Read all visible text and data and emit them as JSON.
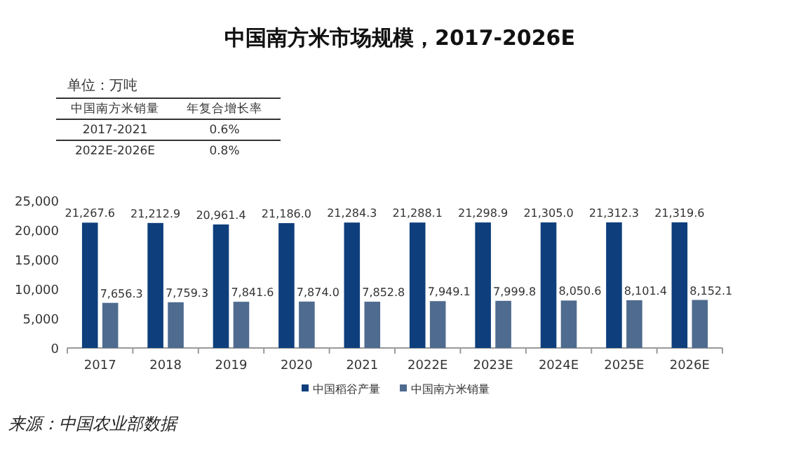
{
  "chart_data": {
    "type": "bar",
    "title": "中国南方米市场规模，2017-2026E",
    "categories": [
      "2017",
      "2018",
      "2019",
      "2020",
      "2021",
      "2022E",
      "2023E",
      "2024E",
      "2025E",
      "2026E"
    ],
    "series": [
      {
        "name": "中国稻谷产量",
        "color": "#0e3f7c",
        "values": [
          21267.6,
          21212.9,
          20961.4,
          21186.0,
          21284.3,
          21288.1,
          21298.9,
          21305.0,
          21312.3,
          21319.6
        ],
        "value_labels": [
          "21,267.6",
          "21,212.9",
          "20,961.4",
          "21,186.0",
          "21,284.3",
          "21,288.1",
          "21,298.9",
          "21,305.0",
          "21,312.3",
          "21,319.6"
        ]
      },
      {
        "name": "中国南方米销量",
        "color": "#4f6b8f",
        "values": [
          7656.3,
          7759.3,
          7841.6,
          7874.0,
          7852.8,
          7949.1,
          7999.8,
          8050.6,
          8101.4,
          8152.1
        ],
        "value_labels": [
          "7,656.3",
          "7,759.3",
          "7,841.6",
          "7,874.0",
          "7,852.8",
          "7,949.1",
          "7,999.8",
          "8,050.6",
          "8,101.4",
          "8,152.1"
        ]
      }
    ],
    "ylim": [
      0,
      25000
    ],
    "yticks": [
      {
        "value": 0,
        "label": "0"
      },
      {
        "value": 5000,
        "label": "5,000"
      },
      {
        "value": 10000,
        "label": "10,000"
      },
      {
        "value": 15000,
        "label": "15,000"
      },
      {
        "value": 20000,
        "label": "20,000"
      },
      {
        "value": 25000,
        "label": "25,000"
      }
    ],
    "legend": "bottom",
    "grid": false,
    "annotations": [
      "单位：万吨",
      "中国南方米销量",
      "年复合增长率",
      "2017-2021",
      "0.6%",
      "2022E-2026E",
      "0.8%",
      "来源：中国农业部数据"
    ]
  }
}
